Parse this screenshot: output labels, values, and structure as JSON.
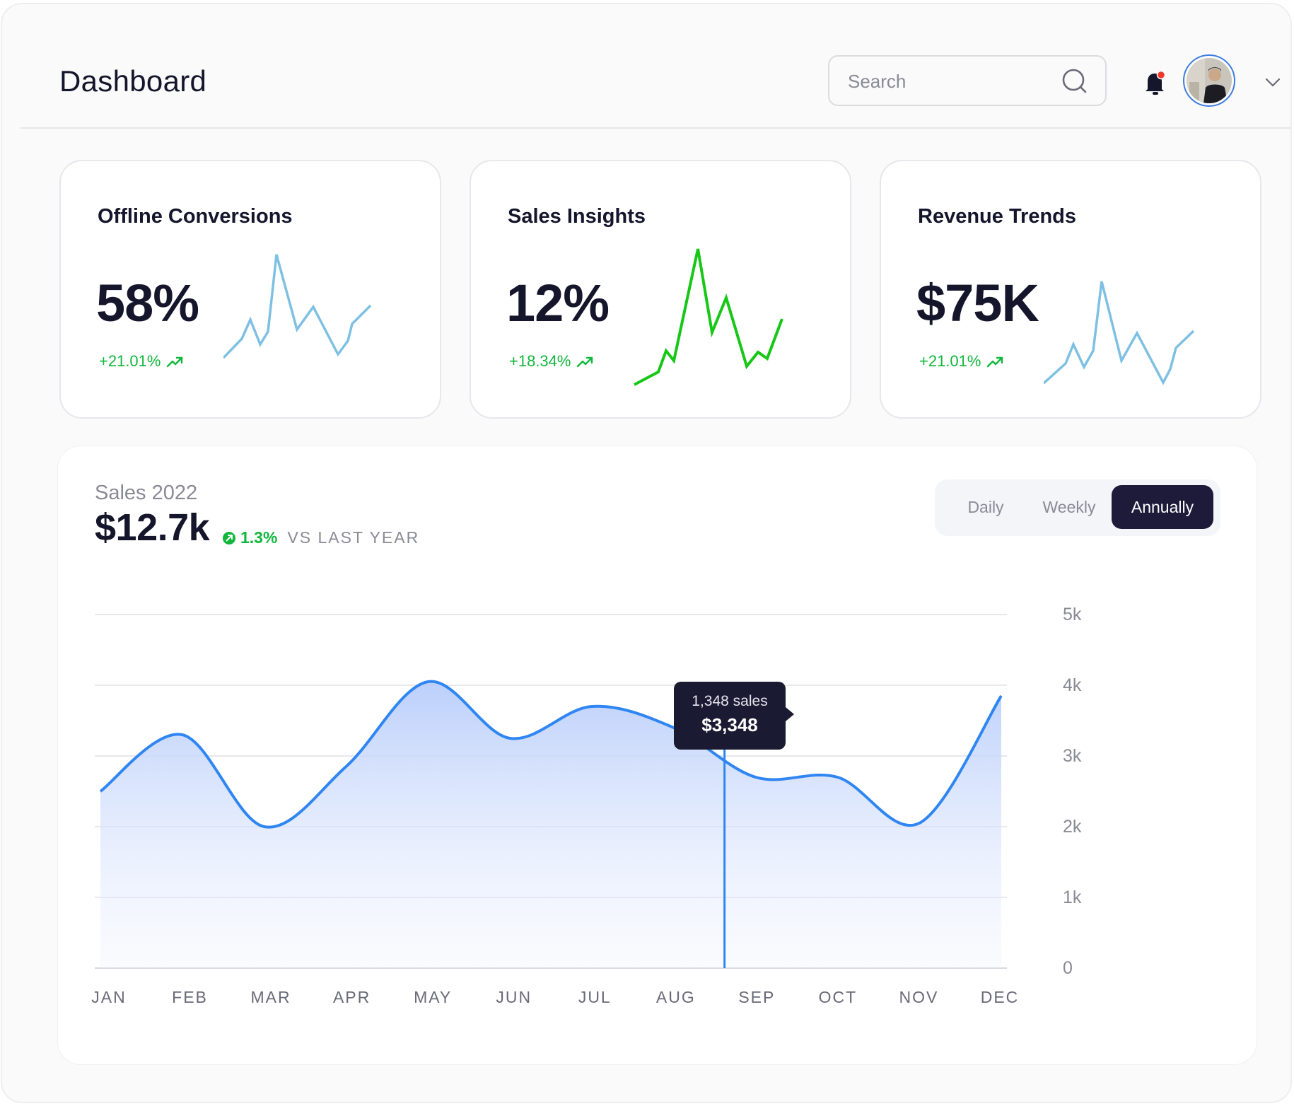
{
  "header": {
    "title": "Dashboard",
    "search_placeholder": "Search"
  },
  "cards": [
    {
      "title": "Offline Conversions",
      "value": "58%",
      "change": "+21.01%",
      "spark_color": "#7ec0e3"
    },
    {
      "title": "Sales Insights",
      "value": "12%",
      "change": "+18.34%",
      "spark_color": "#16c716"
    },
    {
      "title": "Revenue Trends",
      "value": "$75K",
      "change": "+21.01%",
      "spark_color": "#7ec0e3"
    }
  ],
  "sales": {
    "label": "Sales 2022",
    "value": "$12.7k",
    "change_pct": "1.3%",
    "change_text": "VS LAST YEAR",
    "periods": [
      "Daily",
      "Weekly",
      "Annually"
    ],
    "active_period": "Annually"
  },
  "tooltip": {
    "sales": "1,348 sales",
    "value": "$3,348"
  },
  "colors": {
    "accent": "#2f86f2",
    "positive": "#11b73c",
    "dark": "#1b1a33"
  },
  "chart_data": {
    "type": "area",
    "x": [
      "JAN",
      "FEB",
      "MAR",
      "APR",
      "MAY",
      "JUN",
      "JUL",
      "AUG",
      "SEP",
      "OCT",
      "NOV",
      "DEC"
    ],
    "y": [
      2500,
      3300,
      2000,
      2850,
      4050,
      3250,
      3700,
      3400,
      2700,
      2700,
      2050,
      3850
    ],
    "yticks": [
      "0",
      "1k",
      "2k",
      "3k",
      "4k",
      "5k"
    ],
    "ylim": [
      0,
      5000
    ],
    "grid": true,
    "highlight": {
      "between": [
        "AUG",
        "SEP"
      ],
      "value": 3348
    }
  }
}
